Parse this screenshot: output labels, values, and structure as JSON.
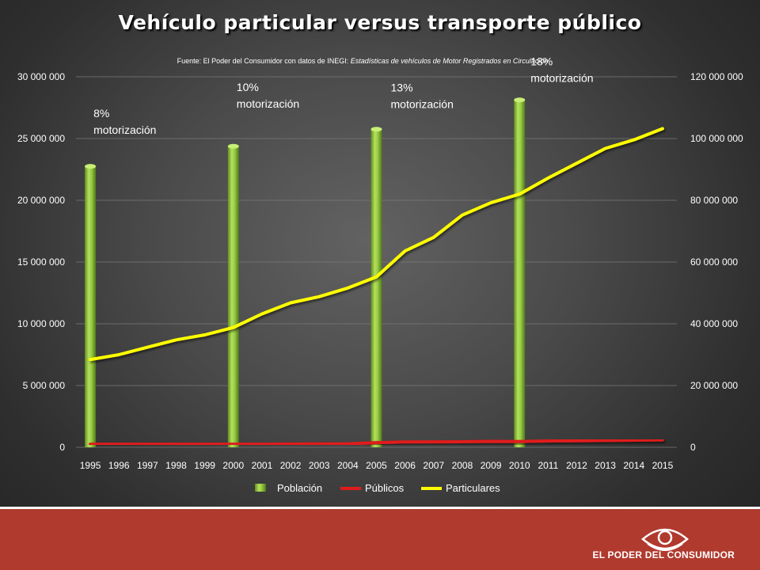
{
  "chart_data": {
    "type": "bar+line",
    "title": "Vehículo particular versus transporte público",
    "subtitle_prefix": "Fuente: El Poder del Consumidor con datos de INEGI: ",
    "subtitle_italic": "Estadísticas de vehículos de Motor Registrados en Circulación",
    "categories": [
      "1995",
      "1996",
      "1997",
      "1998",
      "1999",
      "2000",
      "2001",
      "2002",
      "2003",
      "2004",
      "2005",
      "2006",
      "2007",
      "2008",
      "2009",
      "2010",
      "2011",
      "2012",
      "2013",
      "2014",
      "2015"
    ],
    "y_left": {
      "ticks": [
        "0",
        "5 000 000",
        "10 000 000",
        "15 000 000",
        "20 000 000",
        "25 000 000",
        "30 000 000"
      ],
      "range": [
        0,
        30000000
      ]
    },
    "y_right": {
      "ticks": [
        "0",
        "20 000 000",
        "40 000 000",
        "60 000 000",
        "80 000 000",
        "100 000 000",
        "120 000 000"
      ],
      "range": [
        0,
        120000000
      ]
    },
    "grid": true,
    "legend_position": "bottom",
    "series": [
      {
        "name": "Población",
        "type": "bar",
        "axis": "right",
        "color": "#8cc63f",
        "points": [
          {
            "x": "1995",
            "y": 91000000
          },
          {
            "x": "2000",
            "y": 97500000
          },
          {
            "x": "2005",
            "y": 103000000
          },
          {
            "x": "2010",
            "y": 112500000
          }
        ]
      },
      {
        "name": "Públicos",
        "type": "line",
        "axis": "left",
        "color": "#e01b1b",
        "values": [
          250000,
          250000,
          250000,
          250000,
          250000,
          250000,
          250000,
          260000,
          270000,
          280000,
          380000,
          430000,
          440000,
          450000,
          480000,
          460000,
          510000,
          530000,
          550000,
          580000,
          600000
        ]
      },
      {
        "name": "Particulares",
        "type": "line",
        "axis": "left",
        "color": "#ffff00",
        "values": [
          7100000,
          7500000,
          8100000,
          8700000,
          9100000,
          9700000,
          10800000,
          11700000,
          12200000,
          12900000,
          13800000,
          15900000,
          17000000,
          18800000,
          19800000,
          20500000,
          21800000,
          23000000,
          24200000,
          24900000,
          25800000
        ]
      }
    ],
    "annotations": [
      {
        "x": "1995",
        "lines": [
          "8%",
          "motorización"
        ]
      },
      {
        "x": "2000",
        "lines": [
          "10%",
          "motorización"
        ]
      },
      {
        "x": "2005",
        "lines": [
          "13%",
          "motorización"
        ]
      },
      {
        "x": "2010",
        "lines": [
          "18%",
          "motorización"
        ]
      }
    ]
  },
  "footer": {
    "brand": "EL PODER DEL CONSUMIDOR",
    "logo_icon": "eye-icon",
    "background_color": "#b03a2e"
  }
}
